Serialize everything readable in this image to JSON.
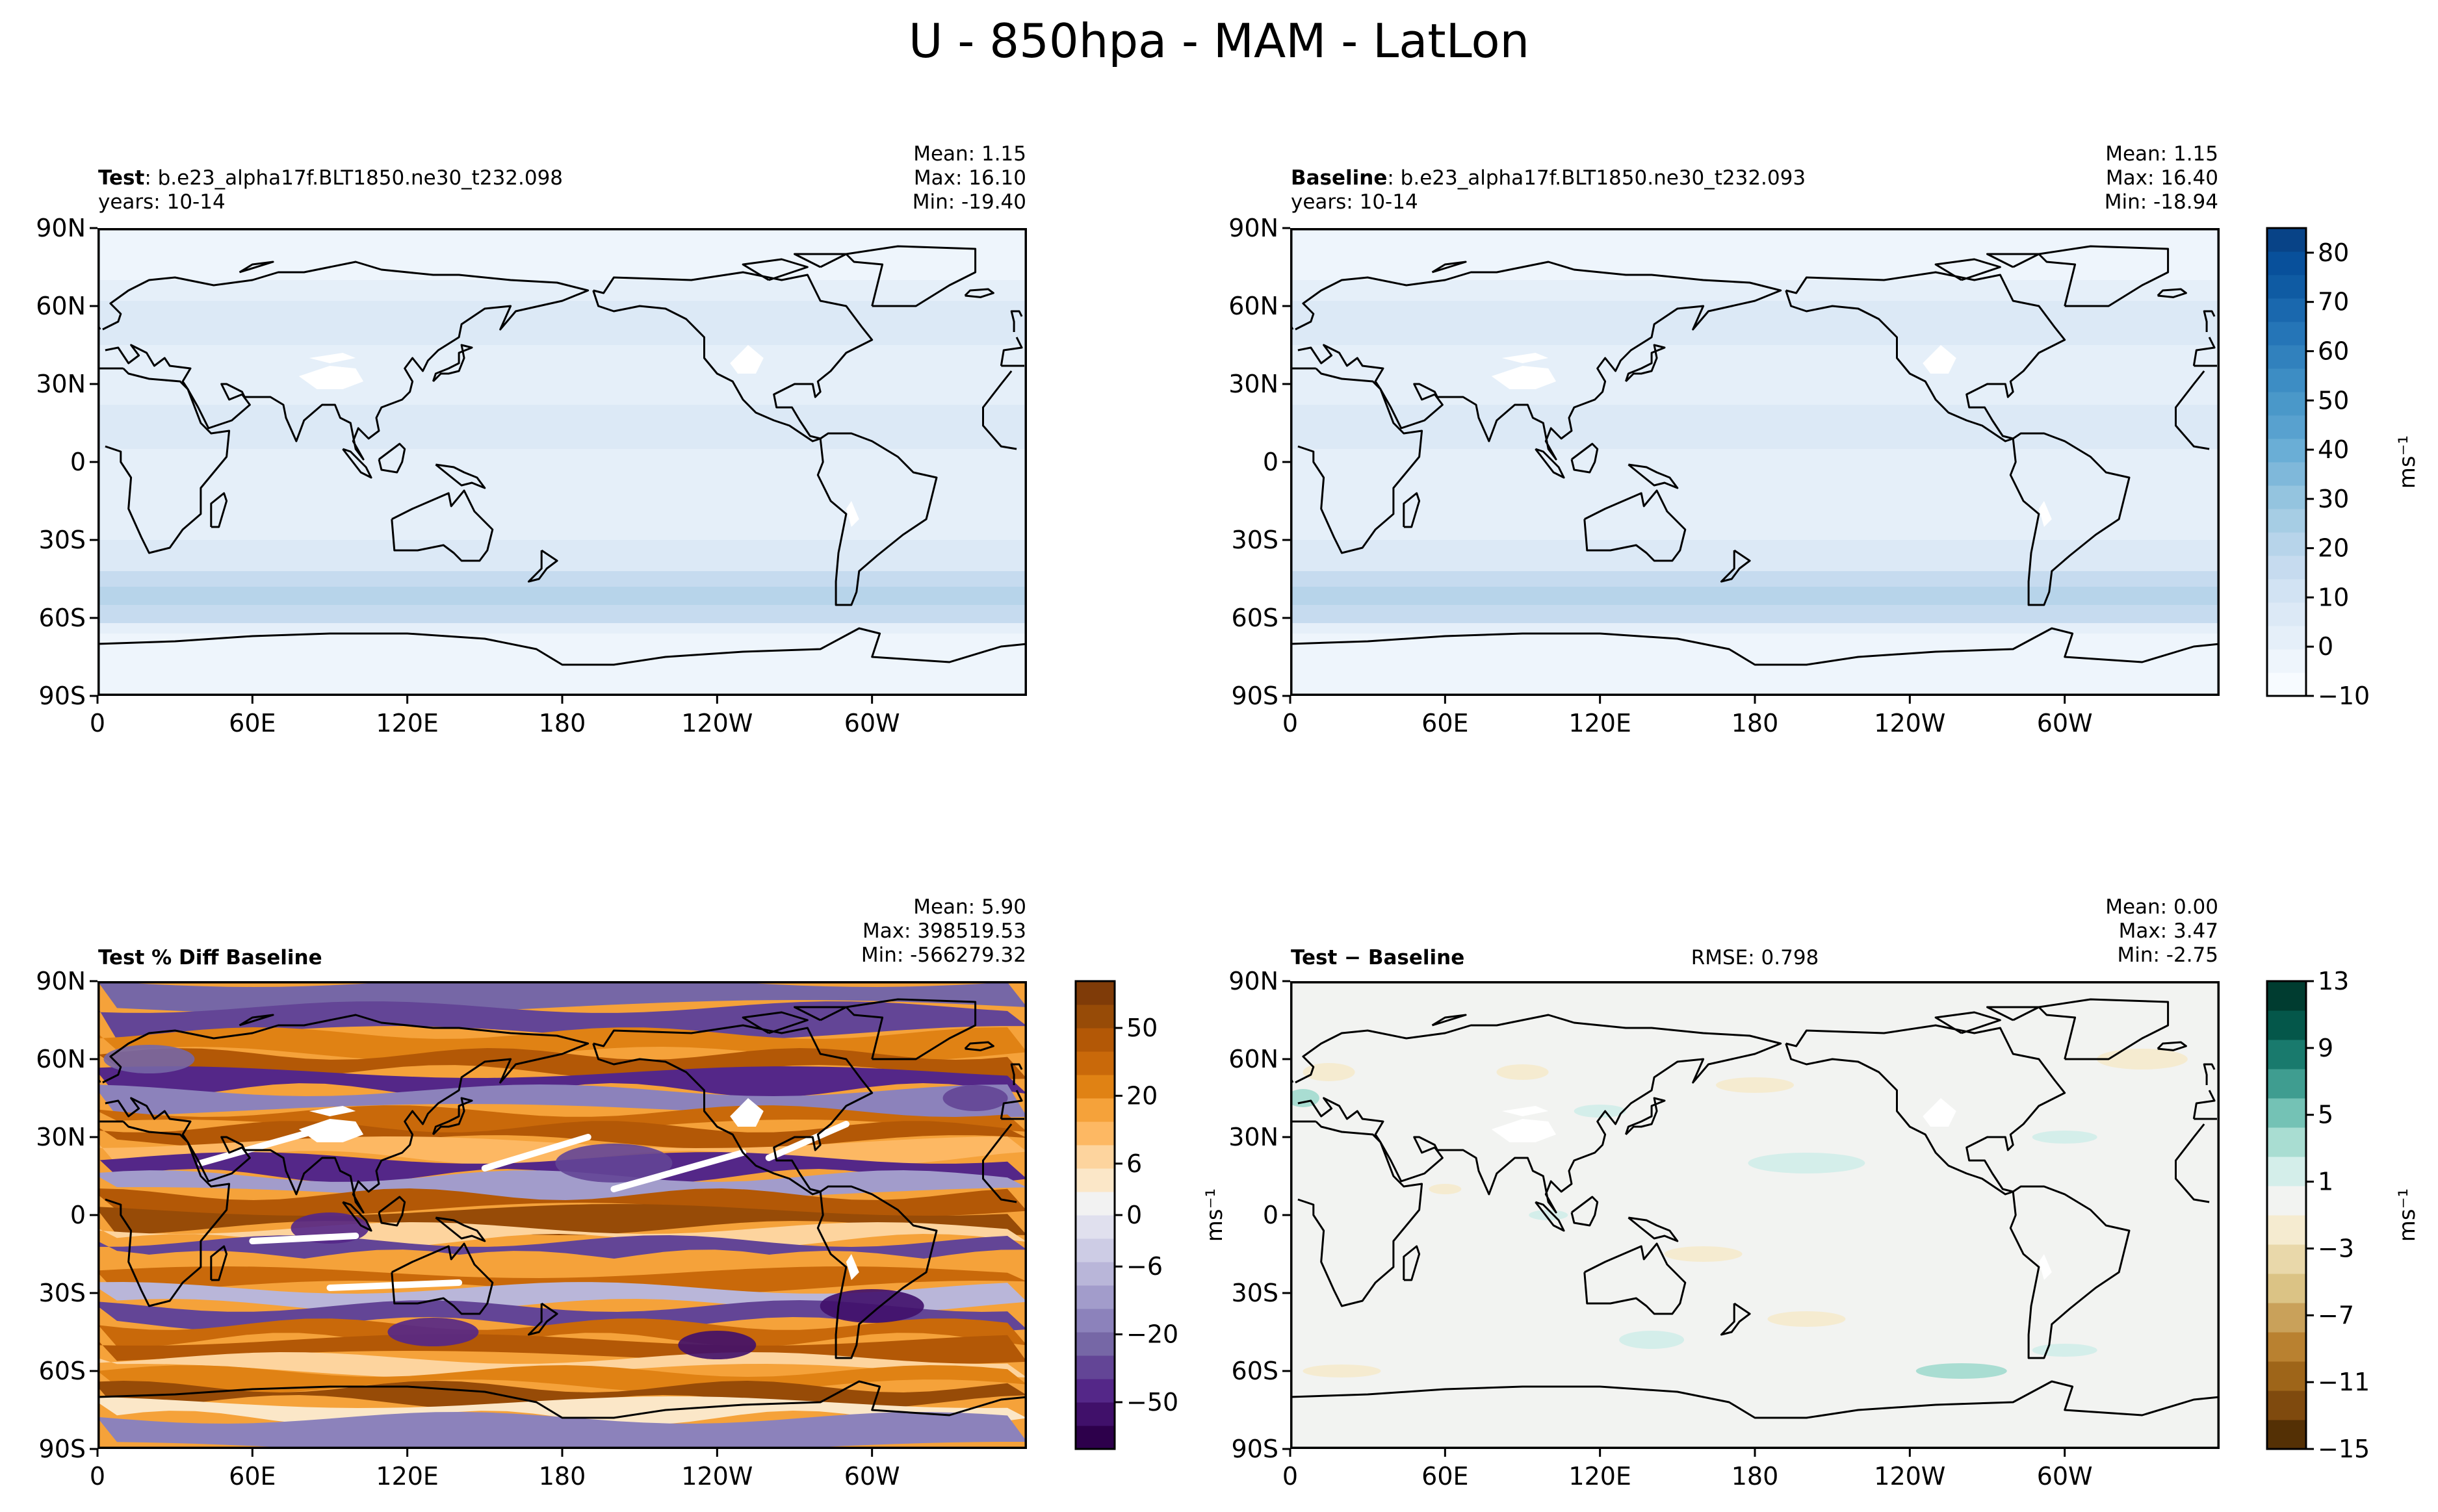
{
  "figure": {
    "title": "U - 850hpa - MAM - LatLon"
  },
  "axes": {
    "lat_ticks": [
      "90N",
      "60N",
      "30N",
      "0",
      "30S",
      "60S",
      "90S"
    ],
    "lon_ticks": [
      "0",
      "60E",
      "120E",
      "180",
      "120W",
      "60W"
    ]
  },
  "panels": {
    "test": {
      "label_bold": "Test",
      "label_rest": ": b.e23_alpha17f.BLT1850.ne30_t232.098",
      "years": "years: 10-14",
      "mean": "Mean:  1.15",
      "max": "Max: 16.10",
      "min": "Min: -19.40",
      "colormap": "Blues"
    },
    "baseline": {
      "label_bold": "Baseline",
      "label_rest": ": b.e23_alpha17f.BLT1850.ne30_t232.093",
      "years": "years: 10-14",
      "mean": "Mean:  1.15",
      "max": "Max: 16.40",
      "min": "Min: -18.94",
      "colormap": "Blues"
    },
    "pctdiff": {
      "label_bold": "Test % Diff Baseline",
      "mean": "Mean:  5.90",
      "max": "Max: 398519.53",
      "min": "Min: -566279.32",
      "colormap": "PuOr"
    },
    "diff": {
      "label_bold": "Test − Baseline",
      "rmse": "RMSE: 0.798",
      "mean": "Mean:  0.00",
      "max": "Max:  3.47",
      "min": "Min: -2.75",
      "colormap": "BrBG"
    }
  },
  "colorbars": {
    "top": {
      "unit": "ms⁻¹",
      "ticks": [
        "80",
        "70",
        "60",
        "50",
        "40",
        "30",
        "20",
        "10",
        "0",
        "−10"
      ],
      "tick_values": [
        80,
        70,
        60,
        50,
        40,
        30,
        20,
        10,
        0,
        -10
      ],
      "range": [
        -10,
        85
      ],
      "colors": [
        "#f7fbff",
        "#eef5fc",
        "#e5eff9",
        "#dce9f6",
        "#d2e3f3",
        "#c6dbef",
        "#b7d4ea",
        "#a6cde4",
        "#94c4df",
        "#7fb8da",
        "#6aaed6",
        "#58a1cf",
        "#4a98c9",
        "#3d8dc4",
        "#3181bd",
        "#2575b7",
        "#1a68ae",
        "#0f5ba3",
        "#08509b",
        "#084387"
      ]
    },
    "pct": {
      "unit": "ms⁻¹",
      "ticks": [
        "50",
        "20",
        "6",
        "0",
        "−6",
        "−20",
        "−50"
      ],
      "tick_values": [
        50,
        20,
        6,
        0,
        -6,
        -20,
        -50
      ],
      "colors": [
        "#2d004b",
        "#40106a",
        "#542788",
        "#634596",
        "#7667a6",
        "#8c82bb",
        "#a29ccb",
        "#b9b6d9",
        "#cdcce5",
        "#e0e0ee",
        "#f2f2f2",
        "#fbe7c8",
        "#fdd49e",
        "#fdb863",
        "#f5a23a",
        "#e08214",
        "#c9690a",
        "#b35806",
        "#974b07",
        "#7f3b08"
      ]
    },
    "diff": {
      "unit": "ms⁻¹",
      "ticks": [
        "13",
        "9",
        "5",
        "1",
        "−3",
        "−7",
        "−11",
        "−15"
      ],
      "tick_values": [
        13,
        9,
        5,
        1,
        -3,
        -7,
        -11,
        -15
      ],
      "range": [
        -15,
        13
      ],
      "colors": [
        "#543005",
        "#7f4a0e",
        "#9e6519",
        "#b98130",
        "#c9a15a",
        "#dbc385",
        "#e9d8aa",
        "#f5ebd0",
        "#f2f3f1",
        "#d4eeea",
        "#a9ddd2",
        "#74c2b5",
        "#3f9d90",
        "#197a6d",
        "#04574a",
        "#003c30"
      ]
    }
  }
}
